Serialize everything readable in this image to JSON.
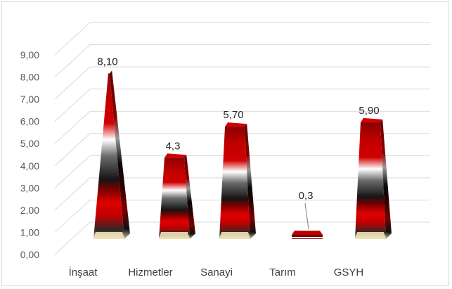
{
  "chart_data": {
    "type": "bar",
    "subtype": "3d-pyramid",
    "categories": [
      "İnşaat",
      "Hizmetler",
      "Sanayi",
      "Tarım",
      "GSYH"
    ],
    "values": [
      8.1,
      4.3,
      5.7,
      0.3,
      5.9
    ],
    "data_labels": [
      "8,10",
      "4,3",
      "5,70",
      "0,3",
      "5,90"
    ],
    "ylim": [
      0,
      9
    ],
    "yticks": [
      "0,00",
      "1,00",
      "2,00",
      "3,00",
      "4,00",
      "5,00",
      "6,00",
      "7,00",
      "8,00",
      "9,00"
    ],
    "grid": true,
    "legend": "none",
    "title": "",
    "xlabel": "",
    "ylabel": ""
  },
  "colors": {
    "dark_red": "#5c0000",
    "red": "#c00000",
    "black": "#151515",
    "white": "#ffffff",
    "base_cream": "#efe2b8",
    "grid": "#d9d9d9",
    "axis_text": "#595959"
  }
}
